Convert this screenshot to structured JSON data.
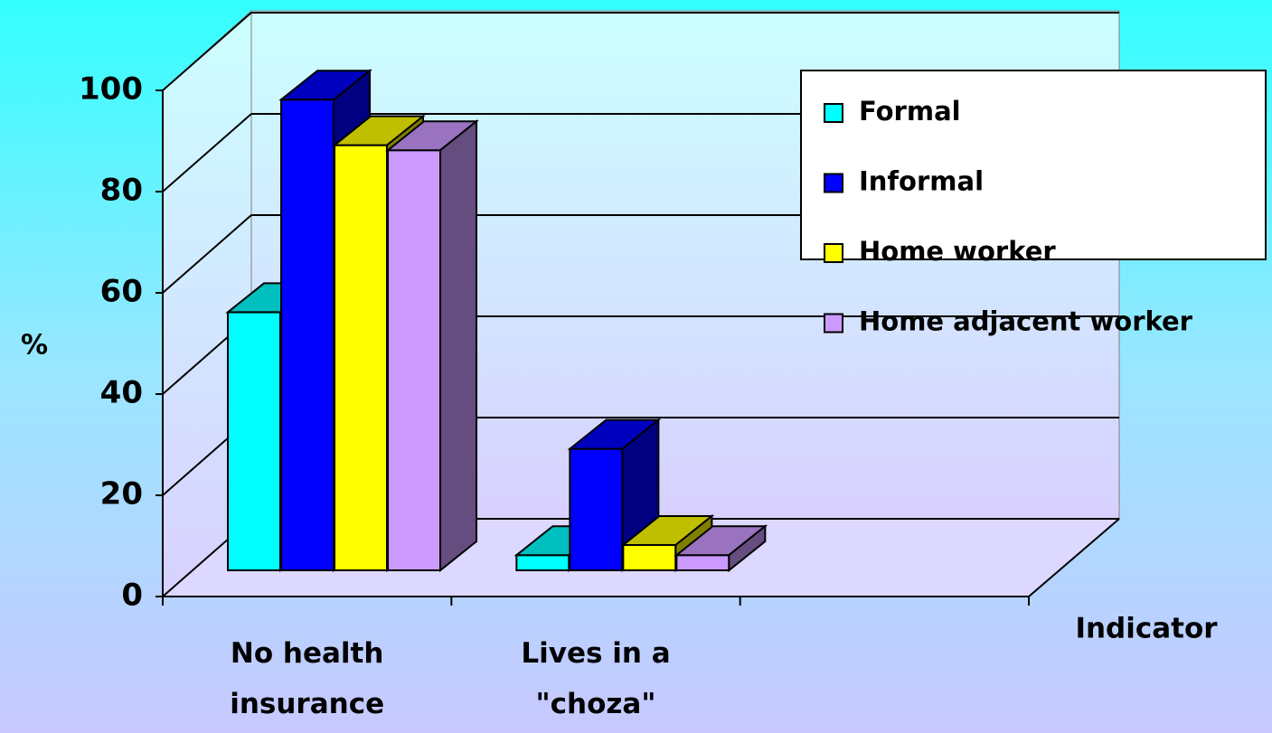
{
  "chart_data": {
    "type": "bar3d",
    "categories": [
      "No health insurance",
      "Lives in a \"choza\"",
      null
    ],
    "series": [
      {
        "name": "Formal",
        "color": "#00ffff",
        "values": [
          51,
          3,
          null
        ]
      },
      {
        "name": "Informal",
        "color": "#0000ff",
        "values": [
          93,
          24,
          null
        ]
      },
      {
        "name": "Home worker",
        "color": "#ffff00",
        "values": [
          84,
          5,
          null
        ]
      },
      {
        "name": "Home adjacent worker",
        "color": "#cc99ff",
        "values": [
          83,
          3,
          null
        ]
      }
    ],
    "ylabel": "%",
    "xlabel": "Indicator",
    "ylim": [
      0,
      100
    ],
    "yticks": [
      0,
      20,
      40,
      60,
      80,
      100
    ],
    "grid": true,
    "legend": "upper right"
  }
}
